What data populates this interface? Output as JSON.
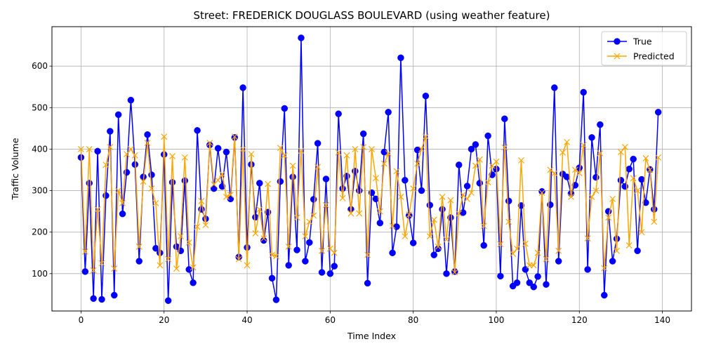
{
  "chart_data": {
    "type": "line",
    "title": "Street: FREDERICK DOUGLASS BOULEVARD (using weather feature)",
    "xlabel": "Time Index",
    "ylabel": "Traffic Volume",
    "xlim": [
      -7,
      147
    ],
    "ylim": [
      10,
      695
    ],
    "xticks": [
      0,
      20,
      40,
      60,
      80,
      100,
      120,
      140
    ],
    "yticks": [
      100,
      200,
      300,
      400,
      500,
      600
    ],
    "grid": true,
    "legend_position": "upper right",
    "series": [
      {
        "name": "True",
        "color": "#0000ff",
        "marker": "circle",
        "values": [
          380,
          105,
          318,
          40,
          395,
          38,
          288,
          443,
          48,
          483,
          244,
          344,
          518,
          363,
          130,
          333,
          435,
          338,
          161,
          150,
          387,
          35,
          320,
          165,
          155,
          324,
          110,
          78,
          445,
          255,
          232,
          410,
          305,
          402,
          310,
          393,
          280,
          428,
          140,
          548,
          163,
          363,
          236,
          318,
          180,
          248,
          89,
          37,
          322,
          498,
          120,
          333,
          157,
          668,
          130,
          175,
          279,
          414,
          103,
          328,
          100,
          118,
          485,
          305,
          335,
          255,
          347,
          300,
          437,
          77,
          295,
          280,
          222,
          393,
          489,
          150,
          213,
          620,
          325,
          240,
          174,
          398,
          300,
          528,
          265,
          145,
          160,
          255,
          100,
          235,
          105,
          362,
          247,
          311,
          400,
          411,
          318,
          168,
          432,
          338,
          352,
          94,
          473,
          275,
          70,
          78,
          264,
          110,
          78,
          68,
          93,
          298,
          74,
          266,
          548,
          130,
          340,
          333,
          293,
          313,
          355,
          537,
          110,
          428,
          332,
          459,
          48,
          250,
          130,
          184,
          325,
          310,
          352,
          376,
          155,
          327,
          271,
          351,
          255,
          489
        ]
      },
      {
        "name": "Predicted",
        "color": "#ffa500",
        "marker": "x",
        "values": [
          400,
          153,
          400,
          108,
          255,
          125,
          362,
          405,
          112,
          300,
          270,
          388,
          400,
          385,
          165,
          322,
          415,
          305,
          270,
          120,
          430,
          135,
          383,
          112,
          190,
          380,
          175,
          115,
          213,
          275,
          217,
          415,
          315,
          325,
          340,
          285,
          290,
          430,
          135,
          400,
          120,
          388,
          197,
          255,
          185,
          316,
          145,
          142,
          403,
          385,
          165,
          360,
          235,
          396,
          190,
          225,
          240,
          357,
          155,
          265,
          160,
          150,
          392,
          282,
          385,
          245,
          400,
          245,
          405,
          145,
          400,
          330,
          250,
          365,
          390,
          215,
          347,
          285,
          190,
          242,
          305,
          365,
          400,
          430,
          190,
          230,
          165,
          285,
          182,
          277,
          103,
          245,
          290,
          280,
          295,
          360,
          375,
          215,
          320,
          360,
          370,
          171,
          404,
          225,
          148,
          160,
          373,
          172,
          120,
          120,
          150,
          295,
          135,
          350,
          342,
          155,
          392,
          417,
          285,
          350,
          342,
          410,
          185,
          285,
          300,
          390,
          113,
          235,
          280,
          155,
          393,
          405,
          168,
          330,
          300,
          200,
          378,
          350,
          225,
          380
        ]
      }
    ]
  }
}
